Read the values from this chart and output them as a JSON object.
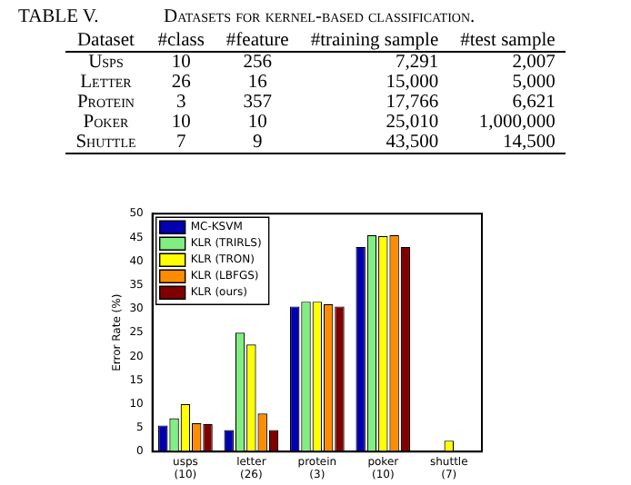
{
  "chart_data": [
    {
      "type": "other",
      "title": "TABLE V.",
      "subtitle": "Datasets for kernel-based classification.",
      "ylabel": "Dataset",
      "categories": [
        "#class",
        "#feature",
        "#training sample",
        "#test sample"
      ],
      "y_categories": [
        "Usps",
        "Letter",
        "Protein",
        "Poker",
        "Shuttle"
      ],
      "cell_labels": [
        [
          "10",
          "256",
          "7,291",
          "2,007"
        ],
        [
          "26",
          "16",
          "15,000",
          "5,000"
        ],
        [
          "3",
          "357",
          "17,766",
          "6,621"
        ],
        [
          "10",
          "10",
          "25,010",
          "1,000,000"
        ],
        [
          "7",
          "9",
          "43,500",
          "14,500"
        ]
      ]
    },
    {
      "type": "bar",
      "ylabel": "Error Rate (%)",
      "categories": [
        "usps\n(10)",
        "letter\n(26)",
        "protein\n(3)",
        "poker\n(10)",
        "shuttle\n(7)"
      ],
      "series": [
        {
          "name": "MC-KSVM",
          "color": "#0000b0",
          "values": [
            5.5,
            4.5,
            30.5,
            43,
            null
          ]
        },
        {
          "name": "KLR (TRIRLS)",
          "color": "#80ee80",
          "values": [
            7,
            25,
            31.5,
            45.5,
            null
          ]
        },
        {
          "name": "KLR (TRON)",
          "color": "#ffff00",
          "values": [
            10,
            22.5,
            31.5,
            45.3,
            2.3
          ]
        },
        {
          "name": "KLR (LBFGS)",
          "color": "#ff8c00",
          "values": [
            6,
            8,
            31,
            45.5,
            null
          ]
        },
        {
          "name": "KLR (ours)",
          "color": "#800000",
          "values": [
            5.8,
            4.5,
            30.5,
            43,
            null
          ]
        }
      ],
      "ylim": [
        0,
        50
      ],
      "yticks": [
        0,
        5,
        10,
        15,
        20,
        25,
        30,
        35,
        40,
        45,
        50
      ],
      "legend": "top left",
      "grid": false
    }
  ]
}
